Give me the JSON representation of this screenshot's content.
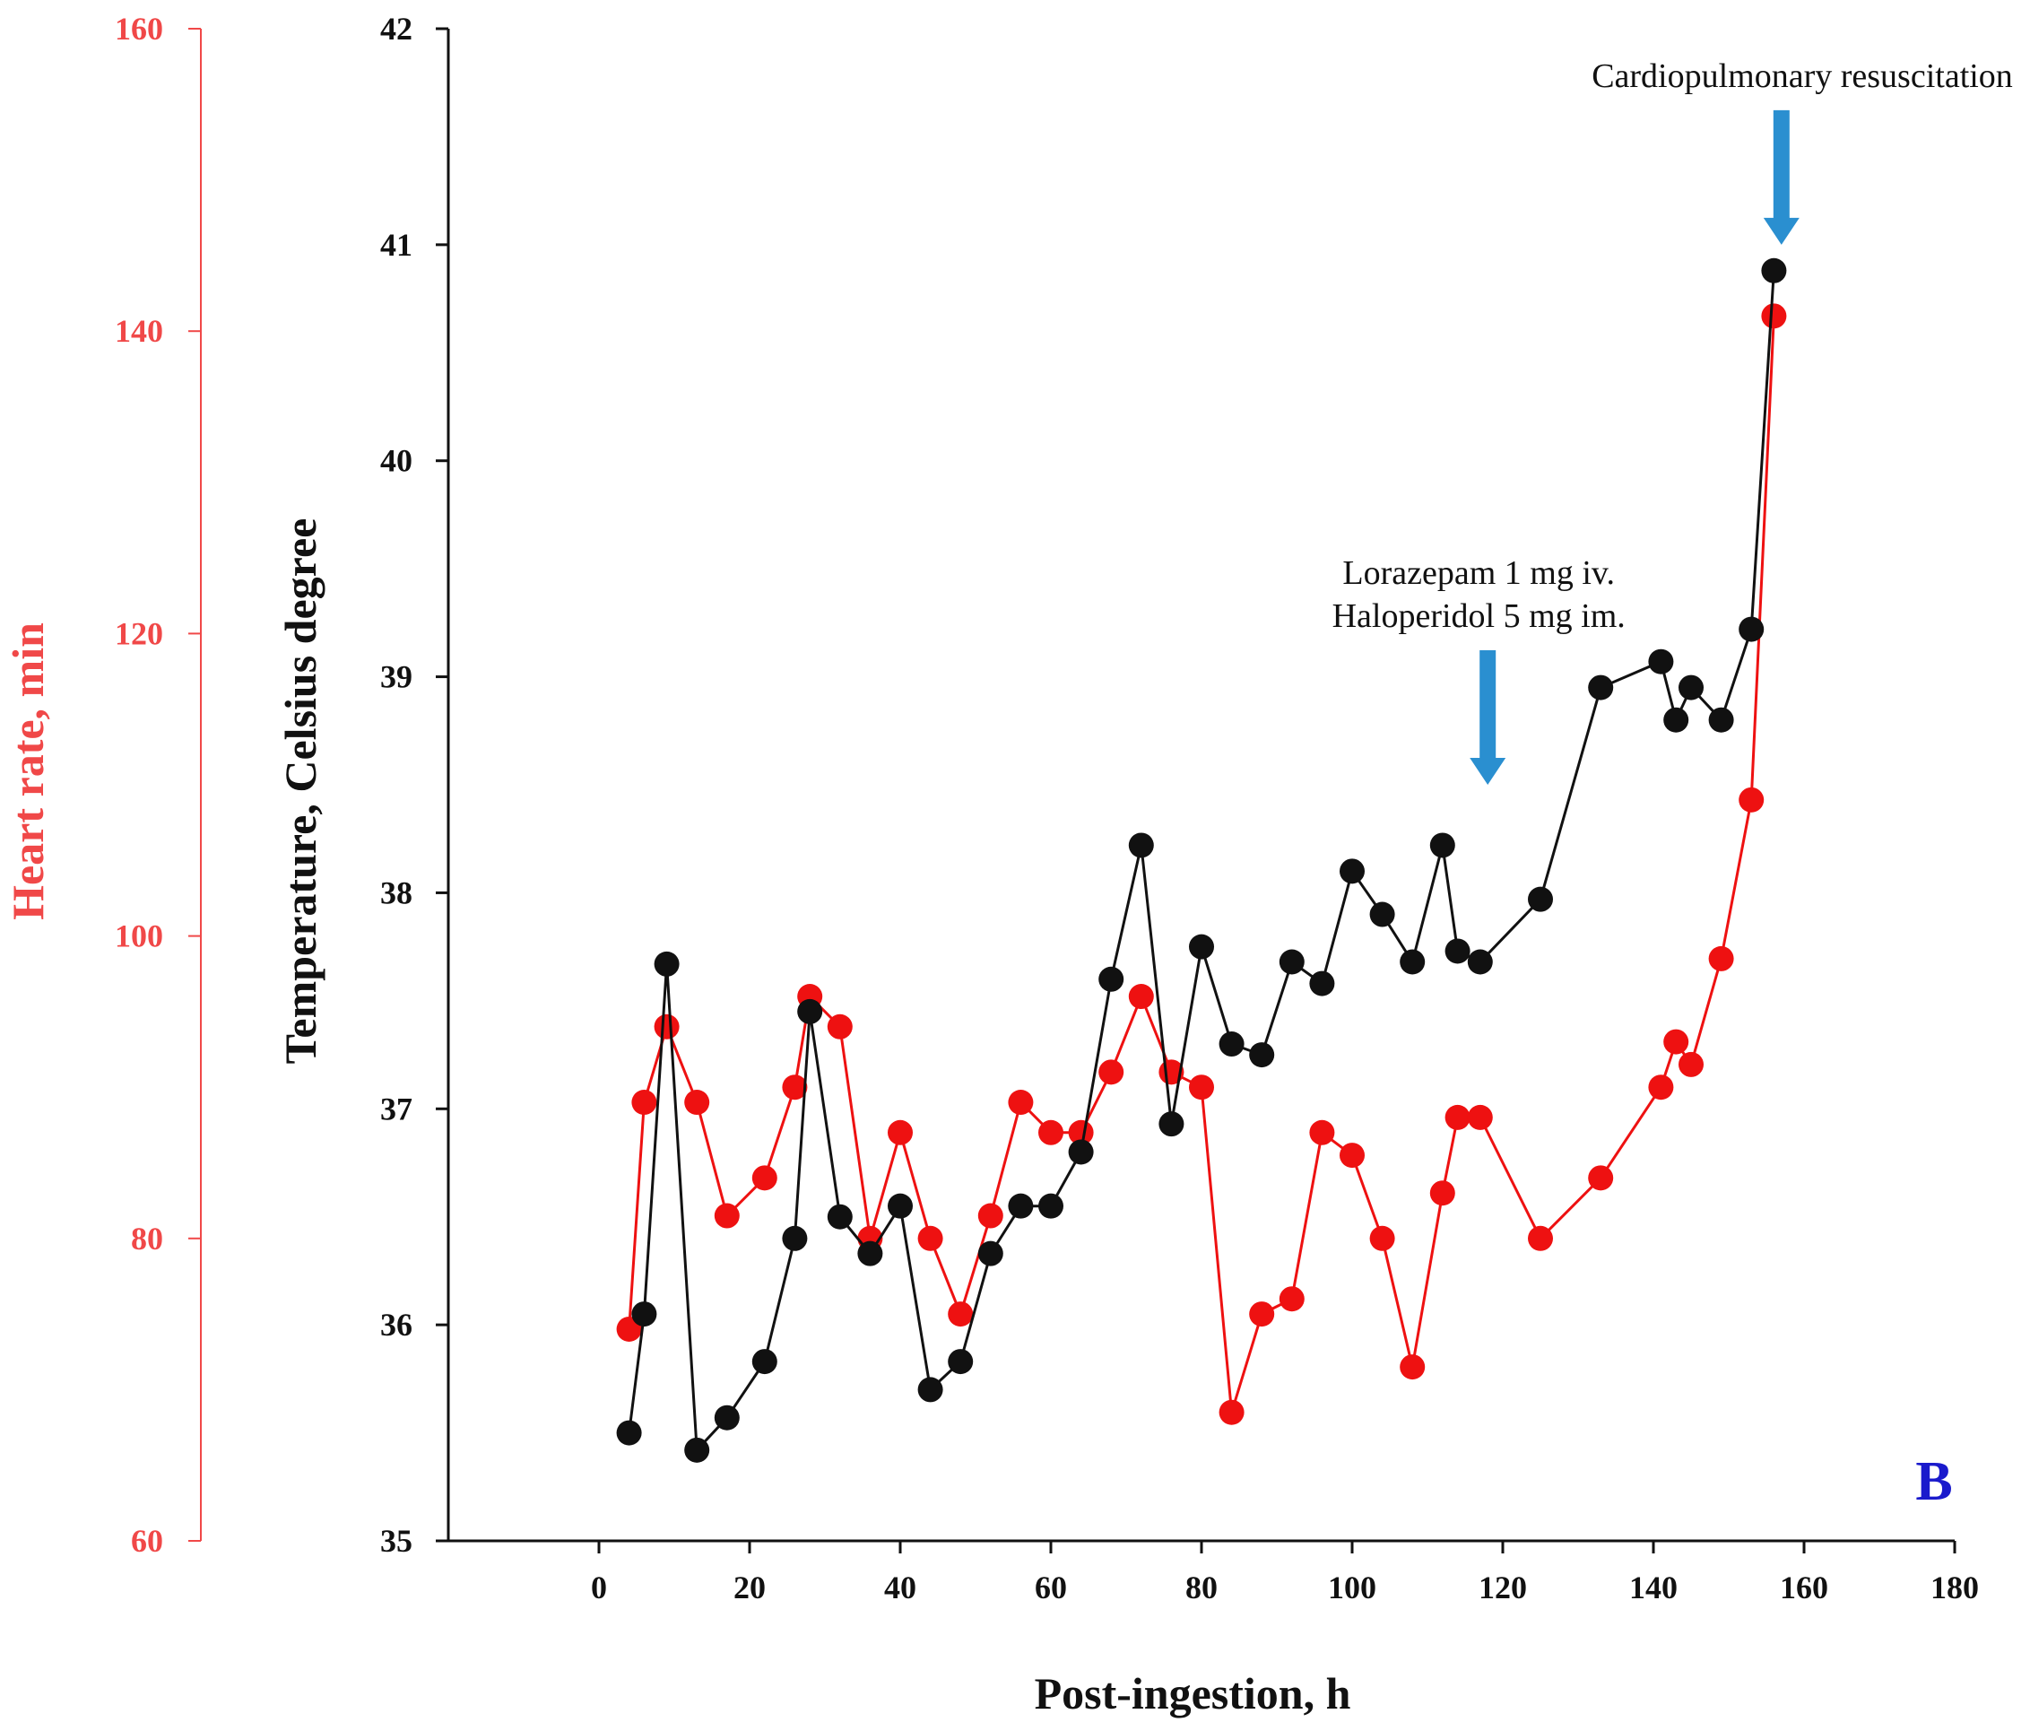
{
  "chart_data": {
    "type": "line",
    "panel_label": "B",
    "xlabel": "Post-ingestion, h",
    "xlim": [
      -20,
      180
    ],
    "xticks": [
      0,
      20,
      40,
      60,
      80,
      100,
      120,
      140,
      160,
      180
    ],
    "y_left": {
      "label": "Heart rate, min",
      "lim": [
        60,
        160
      ],
      "ticks": [
        60,
        80,
        100,
        120,
        140,
        160
      ],
      "color": "#f04848"
    },
    "y_right": {
      "label": "Temperature, Celsius degree",
      "lim": [
        35,
        42
      ],
      "ticks": [
        35,
        36,
        37,
        38,
        39,
        40,
        41,
        42
      ],
      "color": "#111111"
    },
    "series": [
      {
        "name": "Heart rate",
        "axis": "left",
        "color": "#ee1111",
        "x": [
          4,
          6,
          9,
          13,
          17,
          22,
          26,
          28,
          32,
          36,
          40,
          44,
          48,
          52,
          56,
          60,
          64,
          68,
          72,
          76,
          80,
          84,
          88,
          92,
          96,
          100,
          104,
          108,
          112,
          114,
          117,
          125,
          133,
          141,
          143,
          145,
          149,
          153,
          156
        ],
        "values": [
          74,
          89,
          94,
          89,
          81.5,
          84,
          90,
          96,
          94,
          80,
          87,
          80,
          75,
          81.5,
          89,
          87,
          87,
          91,
          96,
          91,
          90,
          68.5,
          75,
          76,
          87,
          85.5,
          80,
          71.5,
          83,
          88,
          88,
          80,
          84,
          90,
          93,
          91.5,
          98.5,
          109,
          141
        ]
      },
      {
        "name": "Temperature",
        "axis": "right",
        "color": "#111111",
        "x": [
          4,
          6,
          9,
          13,
          17,
          22,
          26,
          28,
          32,
          36,
          40,
          44,
          48,
          52,
          56,
          60,
          64,
          68,
          72,
          76,
          80,
          84,
          88,
          92,
          96,
          100,
          104,
          108,
          112,
          114,
          117,
          125,
          133,
          141,
          143,
          145,
          149,
          153,
          156
        ],
        "values": [
          35.5,
          36.05,
          37.67,
          35.42,
          35.57,
          35.83,
          36.4,
          37.45,
          36.5,
          36.33,
          36.55,
          35.7,
          35.83,
          36.33,
          36.55,
          36.55,
          36.8,
          37.6,
          38.22,
          36.93,
          37.75,
          37.3,
          37.25,
          37.68,
          37.58,
          38.1,
          37.9,
          37.68,
          38.22,
          37.73,
          37.68,
          37.97,
          38.95,
          39.07,
          38.8,
          38.95,
          38.8,
          39.22,
          40.88
        ]
      }
    ],
    "annotations": [
      {
        "lines": [
          "Lorazepam 1 mg iv.",
          "Haloperidol 5 mg im."
        ],
        "arrow_x": 118,
        "arrow_tip_temp": 38.5,
        "arrow_color": "#2a8fd0"
      },
      {
        "lines": [
          "Cardiopulmonary resuscitation"
        ],
        "arrow_x": 157,
        "arrow_tip_temp": 41,
        "arrow_color": "#2a8fd0"
      }
    ]
  }
}
